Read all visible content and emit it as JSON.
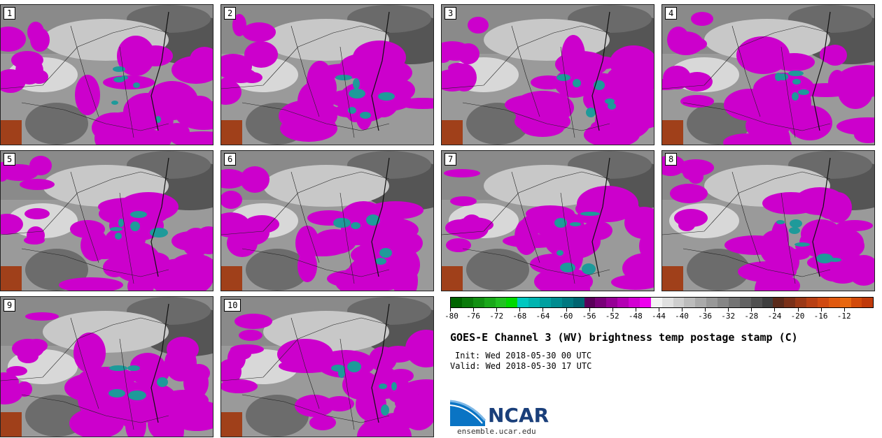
{
  "panels": [
    {
      "number": "1"
    },
    {
      "number": "2"
    },
    {
      "number": "3"
    },
    {
      "number": "4"
    },
    {
      "number": "5"
    },
    {
      "number": "6"
    },
    {
      "number": "7"
    },
    {
      "number": "8"
    },
    {
      "number": "9"
    },
    {
      "number": "10"
    }
  ],
  "colorbar": {
    "tick_labels": [
      "-80",
      "-76",
      "-72",
      "-68",
      "-64",
      "-60",
      "-56",
      "-52",
      "-48",
      "-44",
      "-40",
      "-36",
      "-32",
      "-28",
      "-24",
      "-20",
      "-16",
      "-12"
    ],
    "colors": [
      "#006400",
      "#0a7a0a",
      "#129012",
      "#1aa81a",
      "#22c022",
      "#00d800",
      "#00c8c0",
      "#00b4b0",
      "#00a0a0",
      "#008c90",
      "#007880",
      "#006470",
      "#5a005a",
      "#780078",
      "#960096",
      "#b400b4",
      "#d200d2",
      "#ee00ee",
      "#f2f2f2",
      "#e0e0e0",
      "#cecece",
      "#bcbcbc",
      "#aaaaaa",
      "#989898",
      "#868686",
      "#747474",
      "#626262",
      "#505050",
      "#3e3e3e",
      "#5a2a1a",
      "#7a3018",
      "#9a3816",
      "#b84014",
      "#d04a12",
      "#e05a10",
      "#e86810",
      "#d24a0a",
      "#c03a0a"
    ]
  },
  "title": "GOES-E Channel 3 (WV) brightness temp postage stamp (C)",
  "init": "Init: Wed 2018-05-30 00 UTC",
  "valid": "Valid: Wed 2018-05-30 17 UTC",
  "logo": {
    "text": "NCAR",
    "url": "ensemble.ucar.edu"
  }
}
